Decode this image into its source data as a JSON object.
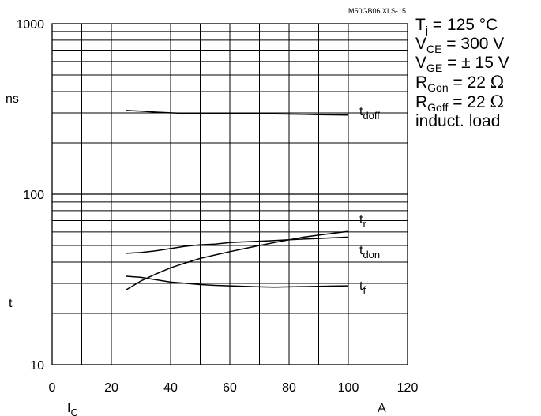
{
  "chart_data": {
    "type": "line",
    "file_id": "M50GB06.XLS-15",
    "x": [
      25,
      30,
      35,
      40,
      45,
      50,
      55,
      60,
      65,
      70,
      75,
      80,
      85,
      90,
      95,
      100
    ],
    "series": [
      {
        "name": "t_doff",
        "name_main": "t",
        "name_sub": "doff",
        "values": [
          310,
          307,
          303,
          300,
          298,
          297,
          297,
          297,
          297,
          296,
          296,
          295,
          294,
          293,
          292,
          291
        ]
      },
      {
        "name": "t_r",
        "name_main": "t",
        "name_sub": "r",
        "values": [
          27.5,
          31,
          34,
          37,
          39.5,
          42,
          44,
          46,
          48,
          50,
          52,
          54,
          56,
          57.5,
          59,
          60.5
        ]
      },
      {
        "name": "t_don",
        "name_main": "t",
        "name_sub": "don",
        "values": [
          45,
          45.5,
          46.5,
          48,
          49.5,
          50.5,
          51,
          52,
          52.5,
          53,
          53.5,
          54,
          54.5,
          55,
          55.5,
          56
        ]
      },
      {
        "name": "t_f",
        "name_main": "t",
        "name_sub": "f",
        "values": [
          33,
          32.5,
          31.5,
          30.5,
          30,
          29.5,
          29.2,
          29,
          28.8,
          28.6,
          28.5,
          28.6,
          28.7,
          28.8,
          28.9,
          29
        ]
      }
    ],
    "xlim": [
      0,
      120
    ],
    "x_ticks": [
      0,
      20,
      40,
      60,
      80,
      100,
      120
    ],
    "ylim": [
      10,
      1000
    ],
    "y_scale": "log",
    "y_ticks": [
      10,
      100,
      1000
    ],
    "xlabel_main": "I",
    "xlabel_sub": "C",
    "xunit": "A",
    "ylabel": "t",
    "yunit": "ns",
    "grid": true,
    "conditions": {
      "tj": {
        "main": "T",
        "sub": "j",
        "rest": " = 125 °C"
      },
      "vce": {
        "main": "V",
        "sub": "CE",
        "rest": " = 300 V"
      },
      "vge": {
        "main": "V",
        "sub": "GE",
        "rest": " = ± 15 V"
      },
      "rgon": {
        "main": "R",
        "sub": "Gon",
        "rest": " = 22 ",
        "unit": "Ω"
      },
      "rgoff": {
        "main": "R",
        "sub": "Goff",
        "rest": " = 22 ",
        "unit": "Ω"
      },
      "load": "induct. load"
    }
  }
}
